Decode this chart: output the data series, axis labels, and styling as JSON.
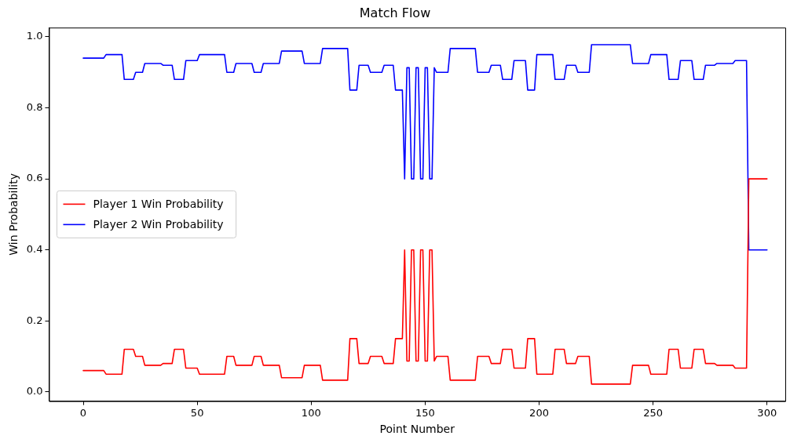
{
  "chart_data": {
    "type": "line",
    "title": "Match Flow",
    "xlabel": "Point Number",
    "ylabel": "Win Probability",
    "xlim": [
      -15,
      308
    ],
    "ylim": [
      -0.026,
      1.026
    ],
    "xticks": [
      0,
      50,
      100,
      150,
      200,
      250,
      300
    ],
    "yticks": [
      {
        "value": 0,
        "label": "0.0"
      },
      {
        "value": 0.2,
        "label": "0.2"
      },
      {
        "value": 0.4,
        "label": "0.4"
      },
      {
        "value": 0.6,
        "label": "0.6"
      },
      {
        "value": 0.8,
        "label": "0.8"
      },
      {
        "value": 1,
        "label": "1.0"
      }
    ],
    "grid": false,
    "legend": "center left",
    "marker": "none",
    "line_style": "solid",
    "series": [
      {
        "name": "Player 1 Win Probability",
        "color": "#ff0000",
        "x": [
          0,
          9,
          10,
          17,
          18,
          22,
          23,
          26,
          27,
          34,
          35,
          39,
          40,
          44,
          45,
          50,
          51,
          62,
          63,
          66,
          67,
          74,
          75,
          78,
          79,
          86,
          87,
          96,
          97,
          104,
          105,
          116,
          117,
          120,
          121,
          125,
          126,
          131,
          132,
          136,
          137,
          140,
          141,
          142,
          143,
          144,
          145,
          146,
          147,
          148,
          149,
          150,
          151,
          152,
          153,
          154,
          155,
          160,
          161,
          172,
          173,
          178,
          179,
          183,
          184,
          188,
          189,
          194,
          195,
          198,
          199,
          206,
          207,
          211,
          212,
          216,
          217,
          222,
          223,
          240,
          241,
          248,
          249,
          256,
          257,
          261,
          262,
          267,
          268,
          272,
          273,
          277,
          278,
          285,
          286,
          291,
          292,
          300
        ],
        "values": [
          0.06,
          0.06,
          0.05,
          0.05,
          0.12,
          0.12,
          0.1,
          0.1,
          0.075,
          0.075,
          0.08,
          0.08,
          0.12,
          0.12,
          0.067,
          0.067,
          0.05,
          0.05,
          0.1,
          0.1,
          0.075,
          0.075,
          0.1,
          0.1,
          0.075,
          0.075,
          0.04,
          0.04,
          0.075,
          0.075,
          0.033,
          0.033,
          0.15,
          0.15,
          0.08,
          0.08,
          0.1,
          0.1,
          0.08,
          0.08,
          0.15,
          0.15,
          0.4,
          0.087,
          0.087,
          0.4,
          0.4,
          0.087,
          0.087,
          0.4,
          0.4,
          0.087,
          0.087,
          0.4,
          0.4,
          0.087,
          0.1,
          0.1,
          0.033,
          0.033,
          0.1,
          0.1,
          0.08,
          0.08,
          0.12,
          0.12,
          0.067,
          0.067,
          0.15,
          0.15,
          0.05,
          0.05,
          0.12,
          0.12,
          0.08,
          0.08,
          0.1,
          0.1,
          0.022,
          0.022,
          0.075,
          0.075,
          0.05,
          0.05,
          0.12,
          0.12,
          0.067,
          0.067,
          0.12,
          0.12,
          0.08,
          0.08,
          0.075,
          0.075,
          0.067,
          0.067,
          0.6,
          0.6
        ]
      },
      {
        "name": "Player 2 Win Probability",
        "color": "#0000ff",
        "x": [
          0,
          9,
          10,
          17,
          18,
          22,
          23,
          26,
          27,
          34,
          35,
          39,
          40,
          44,
          45,
          50,
          51,
          62,
          63,
          66,
          67,
          74,
          75,
          78,
          79,
          86,
          87,
          96,
          97,
          104,
          105,
          116,
          117,
          120,
          121,
          125,
          126,
          131,
          132,
          136,
          137,
          140,
          141,
          142,
          143,
          144,
          145,
          146,
          147,
          148,
          149,
          150,
          151,
          152,
          153,
          154,
          155,
          160,
          161,
          172,
          173,
          178,
          179,
          183,
          184,
          188,
          189,
          194,
          195,
          198,
          199,
          206,
          207,
          211,
          212,
          216,
          217,
          222,
          223,
          240,
          241,
          248,
          249,
          256,
          257,
          261,
          262,
          267,
          268,
          272,
          273,
          277,
          278,
          285,
          286,
          291,
          292,
          300
        ],
        "values": [
          0.94,
          0.94,
          0.95,
          0.95,
          0.88,
          0.88,
          0.9,
          0.9,
          0.925,
          0.925,
          0.92,
          0.92,
          0.88,
          0.88,
          0.933,
          0.933,
          0.95,
          0.95,
          0.9,
          0.9,
          0.925,
          0.925,
          0.9,
          0.9,
          0.925,
          0.925,
          0.96,
          0.96,
          0.925,
          0.925,
          0.967,
          0.967,
          0.85,
          0.85,
          0.92,
          0.92,
          0.9,
          0.9,
          0.92,
          0.92,
          0.85,
          0.85,
          0.6,
          0.913,
          0.913,
          0.6,
          0.6,
          0.913,
          0.913,
          0.6,
          0.6,
          0.913,
          0.913,
          0.6,
          0.6,
          0.913,
          0.9,
          0.9,
          0.967,
          0.967,
          0.9,
          0.9,
          0.92,
          0.92,
          0.88,
          0.88,
          0.933,
          0.933,
          0.85,
          0.85,
          0.95,
          0.95,
          0.88,
          0.88,
          0.92,
          0.92,
          0.9,
          0.9,
          0.978,
          0.978,
          0.925,
          0.925,
          0.95,
          0.95,
          0.88,
          0.88,
          0.933,
          0.933,
          0.88,
          0.88,
          0.92,
          0.92,
          0.925,
          0.925,
          0.933,
          0.933,
          0.4,
          0.4
        ]
      }
    ]
  }
}
